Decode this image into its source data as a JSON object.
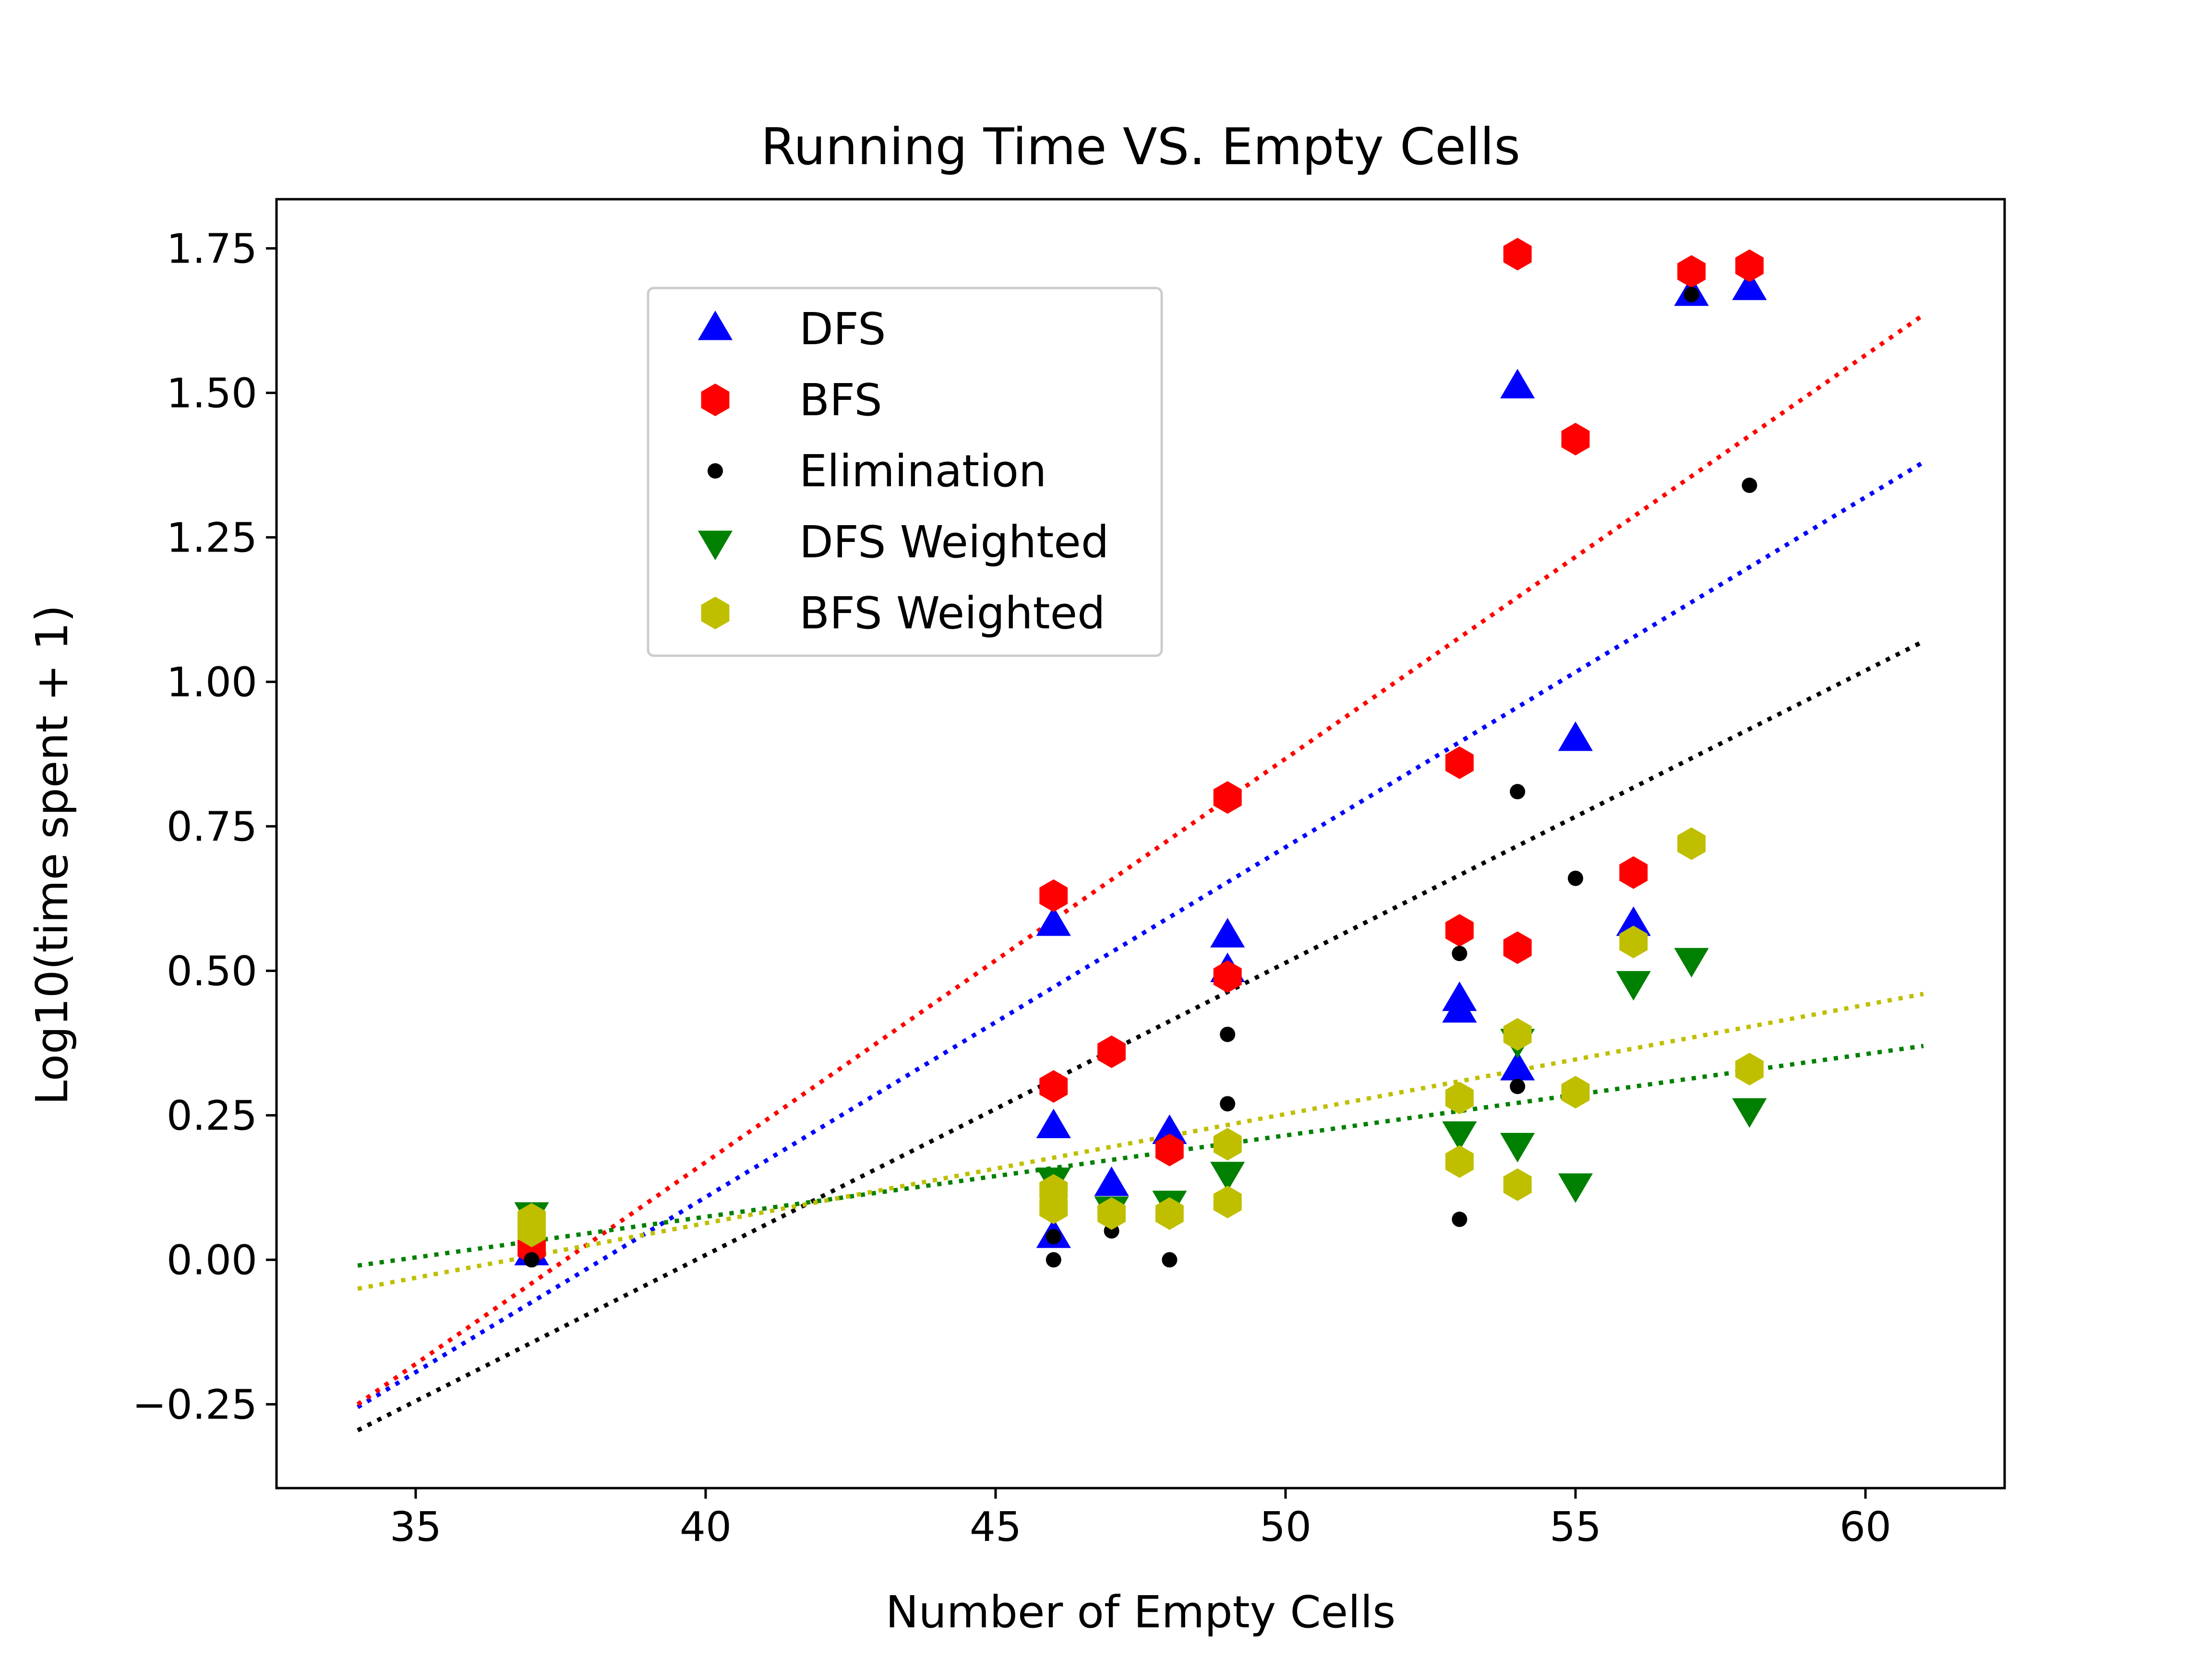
{
  "chart_data": {
    "type": "scatter",
    "title": "Running Time VS. Empty Cells",
    "xlabel": "Number of Empty Cells",
    "ylabel": "Log10(time spent + 1)",
    "xlim": [
      32.6,
      62.4
    ],
    "ylim": [
      -0.395,
      1.835
    ],
    "xticks": [
      35,
      40,
      45,
      50,
      55,
      60
    ],
    "xtick_labels": [
      "35",
      "40",
      "45",
      "50",
      "55",
      "60"
    ],
    "yticks": [
      -0.25,
      0.0,
      0.25,
      0.5,
      0.75,
      1.0,
      1.25,
      1.5,
      1.75
    ],
    "ytick_labels": [
      "−0.25",
      "0.00",
      "0.25",
      "0.50",
      "0.75",
      "1.00",
      "1.25",
      "1.50",
      "1.75"
    ],
    "grid": false,
    "legend_position": "upper-left",
    "series": [
      {
        "name": "DFS",
        "color": "#0000ff",
        "marker": "triangle-up",
        "points": [
          [
            37,
            0.01
          ],
          [
            46,
            0.04
          ],
          [
            46,
            0.23
          ],
          [
            46,
            0.58
          ],
          [
            47,
            0.13
          ],
          [
            48,
            0.22
          ],
          [
            49,
            0.5
          ],
          [
            49,
            0.56
          ],
          [
            53,
            0.43
          ],
          [
            53,
            0.45
          ],
          [
            54,
            0.33
          ],
          [
            54,
            1.51
          ],
          [
            55,
            0.9
          ],
          [
            56,
            0.58
          ],
          [
            57,
            1.67
          ],
          [
            58,
            1.68
          ]
        ],
        "trend": [
          [
            34,
            -0.255
          ],
          [
            61,
            1.38
          ]
        ]
      },
      {
        "name": "BFS",
        "color": "#ff0000",
        "marker": "hexagon",
        "points": [
          [
            37,
            0.02
          ],
          [
            46,
            0.3
          ],
          [
            46,
            0.63
          ],
          [
            47,
            0.36
          ],
          [
            48,
            0.19
          ],
          [
            49,
            0.49
          ],
          [
            49,
            0.8
          ],
          [
            53,
            0.57
          ],
          [
            53,
            0.86
          ],
          [
            54,
            0.54
          ],
          [
            54,
            1.74
          ],
          [
            55,
            1.42
          ],
          [
            56,
            0.67
          ],
          [
            57,
            1.71
          ],
          [
            58,
            1.72
          ]
        ],
        "trend": [
          [
            34,
            -0.25
          ],
          [
            61,
            1.635
          ]
        ]
      },
      {
        "name": "Elimination",
        "color": "#000000",
        "marker": "dot",
        "points": [
          [
            37,
            0.0
          ],
          [
            46,
            0.0
          ],
          [
            46,
            0.04
          ],
          [
            47,
            0.05
          ],
          [
            48,
            0.0
          ],
          [
            49,
            0.27
          ],
          [
            49,
            0.39
          ],
          [
            53,
            0.07
          ],
          [
            53,
            0.53
          ],
          [
            54,
            0.3
          ],
          [
            54,
            0.81
          ],
          [
            55,
            0.66
          ],
          [
            56,
            0.54
          ],
          [
            57,
            1.67
          ],
          [
            58,
            1.34
          ]
        ],
        "trend": [
          [
            34,
            -0.295
          ],
          [
            61,
            1.07
          ]
        ]
      },
      {
        "name": "DFS Weighted",
        "color": "#008000",
        "marker": "triangle-down",
        "points": [
          [
            37,
            0.08
          ],
          [
            46,
            0.14
          ],
          [
            47,
            0.09
          ],
          [
            48,
            0.1
          ],
          [
            49,
            0.15
          ],
          [
            53,
            0.22
          ],
          [
            54,
            0.2
          ],
          [
            54,
            0.38
          ],
          [
            55,
            0.13
          ],
          [
            56,
            0.48
          ],
          [
            57,
            0.52
          ],
          [
            58,
            0.26
          ]
        ],
        "trend": [
          [
            34,
            -0.01
          ],
          [
            61,
            0.37
          ]
        ]
      },
      {
        "name": "BFS Weighted",
        "color": "#bfbf00",
        "marker": "hexagon",
        "points": [
          [
            37,
            0.05
          ],
          [
            37,
            0.07
          ],
          [
            46,
            0.09
          ],
          [
            46,
            0.12
          ],
          [
            47,
            0.08
          ],
          [
            48,
            0.08
          ],
          [
            49,
            0.1
          ],
          [
            49,
            0.2
          ],
          [
            53,
            0.17
          ],
          [
            53,
            0.28
          ],
          [
            54,
            0.13
          ],
          [
            54,
            0.39
          ],
          [
            55,
            0.29
          ],
          [
            56,
            0.55
          ],
          [
            57,
            0.72
          ],
          [
            58,
            0.33
          ]
        ],
        "trend": [
          [
            34,
            -0.05
          ],
          [
            61,
            0.46
          ]
        ]
      }
    ]
  }
}
